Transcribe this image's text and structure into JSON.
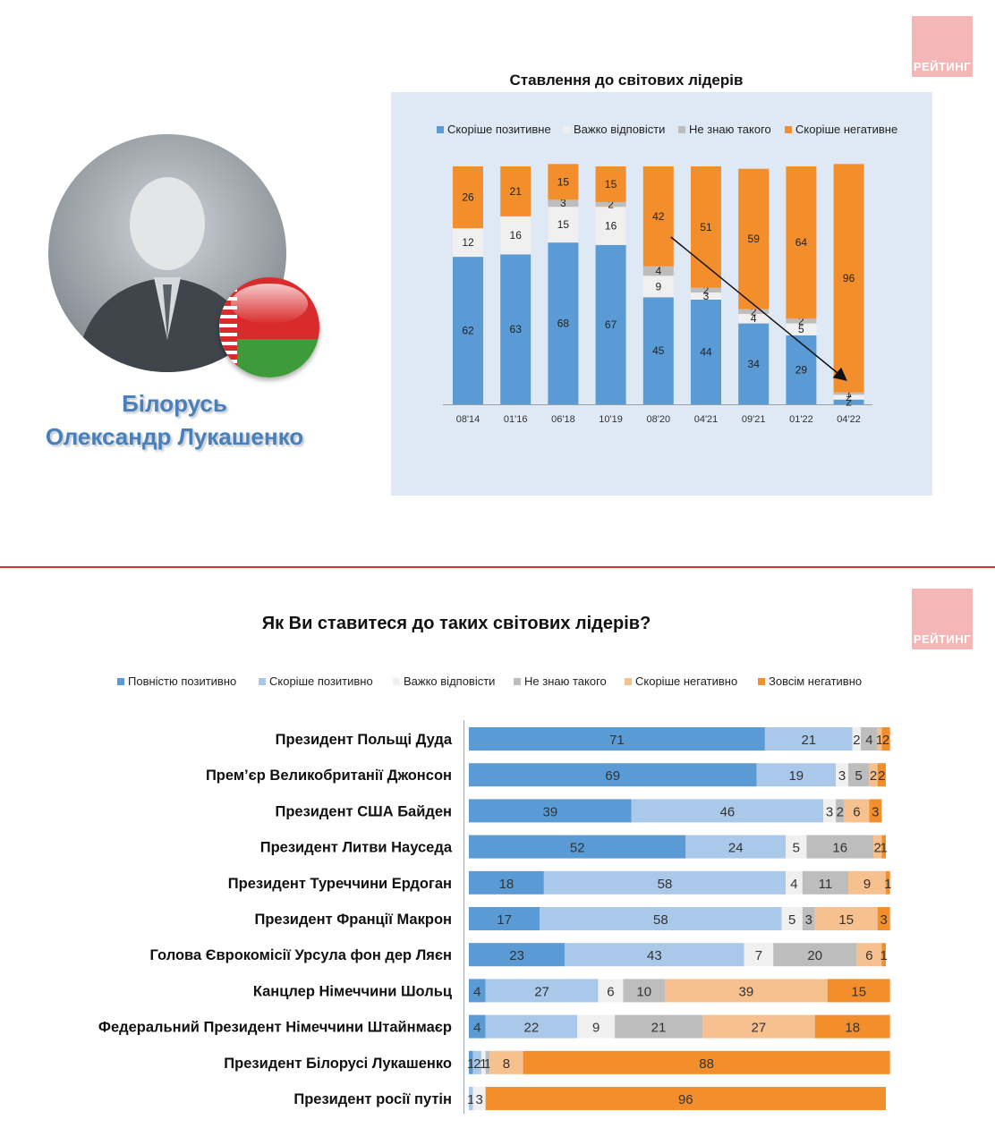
{
  "logo_text": "РЕЙТИНГ",
  "caption": {
    "country": "Білорусь",
    "name": "Олександр Лукашенко"
  },
  "colors": {
    "blue_dark": "#5b9bd5",
    "blue_light": "#a9c8ea",
    "hard": "#f0f0f0",
    "gray": "#bdbdbd",
    "orange_light": "#f7c08f",
    "orange": "#f28e2b",
    "panel_bg": "#dfe9f5",
    "caption": "#4a7fb8",
    "divider": "#d93030"
  },
  "chart_data": [
    {
      "type": "bar",
      "stacked": true,
      "title": "Ставлення до світових лідерів",
      "categories": [
        "08'14",
        "01'16",
        "06'18",
        "10'19",
        "08'20",
        "04'21",
        "09'21",
        "01'22",
        "04'22"
      ],
      "series": [
        {
          "name": "Скоріше позитивне",
          "color": "#5b9bd5",
          "values": [
            62,
            63,
            68,
            67,
            45,
            44,
            34,
            29,
            2
          ]
        },
        {
          "name": "Важко відповісти",
          "color": "#f0f0f0",
          "values": [
            12,
            16,
            15,
            16,
            9,
            3,
            4,
            5,
            2
          ]
        },
        {
          "name": "Не знаю такого",
          "color": "#bdbdbd",
          "values": [
            0,
            0,
            3,
            2,
            4,
            2,
            2,
            2,
            1
          ]
        },
        {
          "name": "Скоріше негативне",
          "color": "#f28e2b",
          "values": [
            26,
            21,
            15,
            15,
            42,
            51,
            59,
            64,
            96
          ]
        }
      ],
      "hidden_labels": [
        [
          false,
          false,
          true,
          false
        ],
        [
          false,
          false,
          true,
          false
        ],
        [
          false,
          false,
          false,
          false
        ],
        [
          false,
          false,
          false,
          false
        ],
        [
          false,
          false,
          false,
          false
        ],
        [
          false,
          false,
          false,
          false
        ],
        [
          false,
          false,
          false,
          false
        ],
        [
          false,
          false,
          false,
          false
        ],
        [
          false,
          false,
          false,
          false
        ]
      ],
      "ylim": [
        0,
        100
      ],
      "trend_arrow": {
        "from_category": "08'20",
        "to_category": "04'22"
      }
    },
    {
      "type": "bar",
      "orientation": "horizontal",
      "stacked": true,
      "title": "Як Ви ставитеся до таких світових лідерів?",
      "categories": [
        "Президент Польщі Дуда",
        "Прем’єр Великобританії Джонсон",
        "Президент США Байден",
        "Президент Литви Науседа",
        "Президент Туреччини Ердоган",
        "Президент Франції Макрон",
        "Голова Єврокомісії Урсула фон дер Ляєн",
        "Канцлер Німеччини Шольц",
        "Федеральний Президент Німеччини Штайнмаєр",
        "Президент Білорусі Лукашенко",
        "Президент росії путін"
      ],
      "series": [
        {
          "name": "Повністю позитивно",
          "color": "#5b9bd5",
          "values": [
            71,
            69,
            39,
            52,
            18,
            17,
            23,
            4,
            4,
            1,
            0
          ]
        },
        {
          "name": "Скоріше позитивно",
          "color": "#a9c8ea",
          "values": [
            21,
            19,
            46,
            24,
            58,
            58,
            43,
            27,
            22,
            2,
            1
          ]
        },
        {
          "name": "Важко відповісти",
          "color": "#f0f0f0",
          "values": [
            2,
            3,
            3,
            5,
            4,
            5,
            7,
            6,
            9,
            1,
            3
          ]
        },
        {
          "name": "Не знаю такого",
          "color": "#bdbdbd",
          "values": [
            4,
            5,
            2,
            16,
            11,
            3,
            20,
            10,
            21,
            1,
            0
          ]
        },
        {
          "name": "Скоріше негативно",
          "color": "#f7c08f",
          "values": [
            1,
            2,
            6,
            2,
            9,
            15,
            6,
            39,
            27,
            8,
            0
          ]
        },
        {
          "name": "Зовсім негативно",
          "color": "#f28e2b",
          "values": [
            2,
            2,
            3,
            1,
            1,
            3,
            1,
            15,
            18,
            88,
            96
          ]
        }
      ],
      "xlim": [
        0,
        100
      ]
    }
  ]
}
